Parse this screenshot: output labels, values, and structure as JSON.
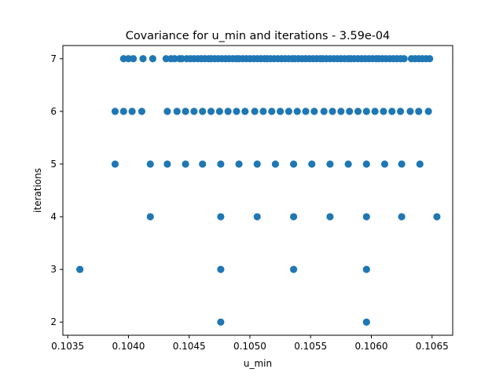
{
  "chart_data": {
    "type": "scatter",
    "title": "Covariance for u_min and iterations - 3.59e-04",
    "xlabel": "u_min",
    "ylabel": "iterations",
    "xlim": [
      0.10346,
      0.10667
    ],
    "ylim": [
      1.75,
      7.25
    ],
    "xticks": [
      0.1035,
      0.104,
      0.1045,
      0.105,
      0.1055,
      0.106,
      0.1065
    ],
    "xtick_labels": [
      "0.1035",
      "0.1040",
      "0.1045",
      "0.1050",
      "0.1055",
      "0.1060",
      "0.1065"
    ],
    "yticks": [
      2,
      3,
      4,
      5,
      6,
      7
    ],
    "ytick_labels": [
      "2",
      "3",
      "4",
      "5",
      "6",
      "7"
    ],
    "grid": false,
    "marker_color": "#1f77b4",
    "points": [
      {
        "y": 7,
        "x": [
          0.10396,
          0.104,
          0.10404,
          0.10412,
          0.1042,
          0.10431,
          0.10435,
          0.10438,
          0.10442,
          0.10444,
          0.10448,
          0.10451,
          0.10454,
          0.10457,
          0.1046,
          0.10463,
          0.10466,
          0.10468,
          0.10471,
          0.10474,
          0.10477,
          0.1048,
          0.10483,
          0.10486,
          0.10489,
          0.10491,
          0.10494,
          0.10497,
          0.105,
          0.10503,
          0.10506,
          0.10509,
          0.10512,
          0.10514,
          0.10517,
          0.1052,
          0.10523,
          0.10526,
          0.10529,
          0.10532,
          0.10535,
          0.10537,
          0.1054,
          0.10543,
          0.10546,
          0.10549,
          0.10552,
          0.10555,
          0.10558,
          0.1056,
          0.10563,
          0.10566,
          0.10569,
          0.10572,
          0.10575,
          0.10578,
          0.10581,
          0.10583,
          0.10586,
          0.10589,
          0.10592,
          0.10595,
          0.10598,
          0.10601,
          0.10604,
          0.10606,
          0.10609,
          0.10612,
          0.10615,
          0.10618,
          0.10621,
          0.10624,
          0.10627,
          0.10633,
          0.10636,
          0.10639,
          0.10642,
          0.10645,
          0.10648
        ]
      },
      {
        "y": 6,
        "x": [
          0.10389,
          0.10396,
          0.10403,
          0.10411,
          0.10432,
          0.1044,
          0.10447,
          0.10454,
          0.10461,
          0.10468,
          0.10475,
          0.10482,
          0.10489,
          0.10496,
          0.10504,
          0.10511,
          0.10518,
          0.10525,
          0.10532,
          0.10539,
          0.10546,
          0.10553,
          0.10561,
          0.10568,
          0.10575,
          0.10582,
          0.10589,
          0.10596,
          0.10603,
          0.1061,
          0.10617,
          0.10624,
          0.10632,
          0.10639,
          0.10647
        ]
      },
      {
        "y": 5,
        "x": [
          0.10389,
          0.10418,
          0.10432,
          0.10447,
          0.10461,
          0.10476,
          0.10491,
          0.10506,
          0.10521,
          0.10536,
          0.10551,
          0.10566,
          0.10581,
          0.10596,
          0.10611,
          0.10625,
          0.1064
        ]
      },
      {
        "y": 4,
        "x": [
          0.10418,
          0.10476,
          0.10506,
          0.10536,
          0.10566,
          0.10596,
          0.10625,
          0.10654
        ]
      },
      {
        "y": 3,
        "x": [
          0.1036,
          0.10476,
          0.10536,
          0.10596
        ]
      },
      {
        "y": 2,
        "x": [
          0.10476,
          0.10596
        ]
      }
    ]
  }
}
